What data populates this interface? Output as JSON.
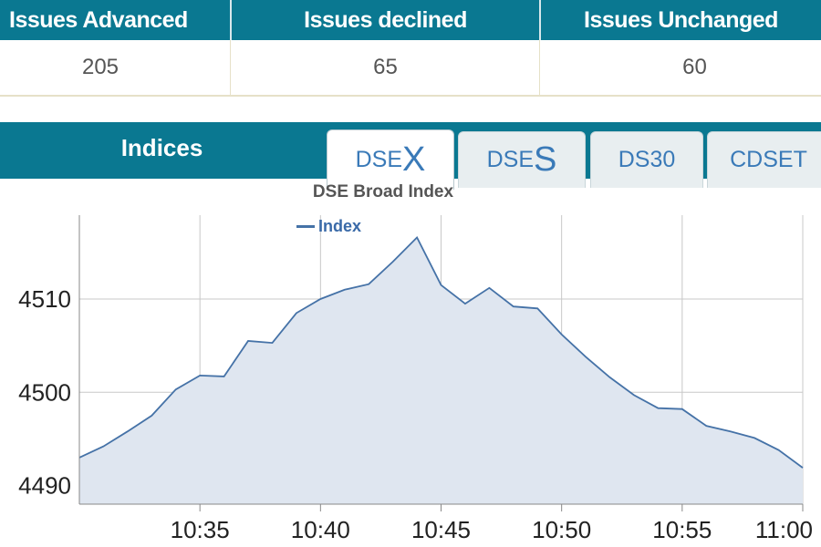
{
  "stats": {
    "headers": [
      "Issues Advanced",
      "Issues declined",
      "Issues Unchanged"
    ],
    "values": [
      "205",
      "65",
      "60"
    ]
  },
  "indices": {
    "title": "Indices",
    "tabs": [
      {
        "prefix": "DSE",
        "suffix": "X",
        "active": true
      },
      {
        "prefix": "DSE",
        "suffix": "S",
        "active": false
      },
      {
        "prefix": "DS30",
        "suffix": "",
        "active": false
      },
      {
        "prefix": "CDSET",
        "suffix": "",
        "active": false
      }
    ]
  },
  "colors": {
    "header_bg": "#0a7891",
    "series_line": "#4572a7",
    "series_fill": "#dfe6f0",
    "tab_text": "#3a7ab8"
  },
  "chart_data": {
    "type": "area",
    "title": "DSE Broad Index",
    "xlabel": "",
    "ylabel": "",
    "legend": "top-center",
    "grid": true,
    "xlim": [
      "10:30",
      "11:00"
    ],
    "ylim": [
      4488,
      4519
    ],
    "yticks": [
      4490,
      4500,
      4510
    ],
    "xticks": [
      "10:35",
      "10:40",
      "10:45",
      "10:50",
      "10:55",
      "11:00"
    ],
    "series": [
      {
        "name": "Index",
        "x": [
          "10:30",
          "10:31",
          "10:32",
          "10:33",
          "10:34",
          "10:35",
          "10:36",
          "10:37",
          "10:38",
          "10:39",
          "10:40",
          "10:41",
          "10:42",
          "10:43",
          "10:44",
          "10:45",
          "10:46",
          "10:47",
          "10:48",
          "10:49",
          "10:50",
          "10:51",
          "10:52",
          "10:53",
          "10:54",
          "10:55",
          "10:56",
          "10:57",
          "10:58",
          "10:59",
          "11:00"
        ],
        "values": [
          4493.0,
          4494.2,
          4495.8,
          4497.5,
          4500.3,
          4501.8,
          4501.7,
          4505.5,
          4505.3,
          4508.5,
          4510.0,
          4511.0,
          4511.6,
          4514.0,
          4516.6,
          4511.5,
          4509.5,
          4511.2,
          4509.2,
          4509.0,
          4506.2,
          4503.8,
          4501.6,
          4499.7,
          4498.3,
          4498.2,
          4496.4,
          4495.8,
          4495.1,
          4493.8,
          4491.9
        ]
      }
    ]
  }
}
